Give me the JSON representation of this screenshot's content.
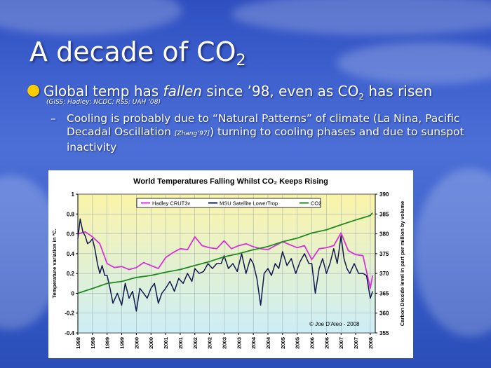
{
  "slide": {
    "title_main": "A decade of CO",
    "title_sub": "2",
    "bullet1_pre": "Global temp has ",
    "bullet1_em": "fallen",
    "bullet1_mid": " since ’98, even as CO",
    "bullet1_sub": "2",
    "bullet1_post": " has risen",
    "bullet1_source": "(GISS; Hadley; NCDC; RSS; UAH ‘08)",
    "bullet2_dash": "–",
    "bullet2_pre": "Cooling is probably due to “Natural Patterns” of climate (La Nina, Pacific Decadal Oscillation ",
    "bullet2_ref": "[Zhang’97]",
    "bullet2_post": ") turning to cooling phases and due to sunspot inactivity"
  },
  "chart_data": {
    "type": "line",
    "title": "World Temperatures Falling Whilst CO₂ Keeps Rising",
    "ylabel": "Temperature variation in ºC.",
    "y2label": "Carbon Dioxide level in part per million by volume",
    "ylim": [
      -0.4,
      1
    ],
    "y2lim": [
      355,
      390
    ],
    "yticks": [
      "1",
      "0.8",
      "0.6",
      "0.4",
      "0.2",
      "0",
      "-0.2",
      "-0.4"
    ],
    "y2ticks": [
      "390",
      "385",
      "380",
      "375",
      "370",
      "365",
      "360",
      "355"
    ],
    "xlim": [
      1998,
      2008.17
    ],
    "xtick_labels": [
      "1998",
      "1998",
      "1999",
      "1999",
      "2000",
      "2000",
      "2001",
      "2001",
      "2002",
      "2002",
      "2003",
      "2003",
      "2004",
      "2004",
      "2005",
      "2005",
      "2006",
      "2006",
      "2007",
      "2007",
      "2008"
    ],
    "grid": true,
    "legend_position": "top",
    "credit": "© Joe D'Aleo - 2008",
    "colors": {
      "hadley": "#d633d6",
      "msu": "#101850",
      "co2": "#1f8a1f",
      "plot_bg_top": "#fbf4a8",
      "plot_bg_bottom": "#cdeef7"
    },
    "series": [
      {
        "name": "Hadley CRUT3v",
        "x": [
          1998.0,
          1998.25,
          1998.5,
          1998.75,
          1999.0,
          1999.25,
          1999.5,
          1999.75,
          2000.0,
          2000.25,
          2000.5,
          2000.75,
          2001.0,
          2001.25,
          2001.5,
          2001.75,
          2002.0,
          2002.25,
          2002.5,
          2002.75,
          2003.0,
          2003.25,
          2003.5,
          2003.75,
          2004.0,
          2004.25,
          2004.5,
          2004.75,
          2005.0,
          2005.25,
          2005.5,
          2005.75,
          2006.0,
          2006.25,
          2006.5,
          2006.75,
          2007.0,
          2007.25,
          2007.5,
          2007.75,
          2008.0,
          2008.08
        ],
        "y": [
          0.6,
          0.62,
          0.57,
          0.5,
          0.3,
          0.26,
          0.27,
          0.24,
          0.26,
          0.31,
          0.28,
          0.25,
          0.36,
          0.41,
          0.45,
          0.44,
          0.57,
          0.48,
          0.46,
          0.45,
          0.53,
          0.45,
          0.48,
          0.5,
          0.47,
          0.45,
          0.44,
          0.48,
          0.52,
          0.49,
          0.46,
          0.48,
          0.34,
          0.45,
          0.46,
          0.48,
          0.61,
          0.43,
          0.39,
          0.38,
          0.05,
          0.18
        ]
      },
      {
        "name": "MSU Satellite LowerTrop",
        "x": [
          1998.0,
          1998.08,
          1998.17,
          1998.25,
          1998.33,
          1998.42,
          1998.5,
          1998.58,
          1998.67,
          1998.75,
          1998.83,
          1998.92,
          1999.0,
          1999.1,
          1999.2,
          1999.35,
          1999.5,
          1999.62,
          1999.75,
          1999.87,
          2000.0,
          2000.12,
          2000.25,
          2000.37,
          2000.5,
          2000.62,
          2000.75,
          2000.87,
          2001.0,
          2001.15,
          2001.3,
          2001.45,
          2001.6,
          2001.75,
          2001.9,
          2002.0,
          2002.15,
          2002.3,
          2002.45,
          2002.6,
          2002.75,
          2002.9,
          2003.0,
          2003.15,
          2003.3,
          2003.45,
          2003.6,
          2003.75,
          2003.9,
          2004.0,
          2004.12,
          2004.25,
          2004.37,
          2004.5,
          2004.62,
          2004.75,
          2004.87,
          2005.0,
          2005.15,
          2005.3,
          2005.45,
          2005.6,
          2005.75,
          2005.9,
          2006.0,
          2006.12,
          2006.25,
          2006.37,
          2006.5,
          2006.62,
          2006.75,
          2006.87,
          2007.0,
          2007.1,
          2007.2,
          2007.3,
          2007.45,
          2007.6,
          2007.75,
          2007.87,
          2008.0,
          2008.08
        ],
        "y": [
          0.55,
          0.75,
          0.62,
          0.58,
          0.5,
          0.52,
          0.55,
          0.45,
          0.3,
          0.2,
          0.28,
          0.18,
          0.18,
          0.05,
          -0.1,
          0.0,
          -0.12,
          0.1,
          -0.05,
          0.02,
          -0.18,
          0.05,
          0.0,
          -0.05,
          0.05,
          0.1,
          -0.1,
          0.0,
          0.05,
          0.12,
          0.02,
          0.15,
          0.1,
          0.2,
          0.12,
          0.25,
          0.2,
          0.22,
          0.3,
          0.25,
          0.3,
          0.3,
          0.38,
          0.25,
          0.3,
          0.22,
          0.4,
          0.2,
          0.35,
          0.3,
          0.15,
          -0.12,
          0.2,
          0.25,
          0.18,
          0.3,
          0.25,
          0.42,
          0.28,
          0.35,
          0.2,
          0.32,
          0.4,
          0.3,
          0.3,
          0.0,
          0.25,
          0.35,
          0.2,
          0.3,
          0.45,
          0.3,
          0.58,
          0.35,
          0.25,
          0.2,
          0.3,
          0.2,
          0.2,
          0.18,
          -0.05,
          0.02
        ]
      },
      {
        "name": "CO2",
        "x": [
          1998.0,
          1998.5,
          1999.0,
          1999.5,
          2000.0,
          2000.5,
          2001.0,
          2001.5,
          2002.0,
          2002.5,
          2003.0,
          2003.5,
          2004.0,
          2004.5,
          2005.0,
          2005.5,
          2006.0,
          2006.5,
          2007.0,
          2007.5,
          2008.0,
          2008.08
        ],
        "y": [
          365.0,
          366.2,
          367.5,
          368.0,
          369.0,
          369.5,
          370.3,
          371.0,
          372.0,
          373.0,
          374.2,
          375.0,
          376.0,
          376.8,
          378.0,
          378.9,
          380.2,
          381.0,
          382.3,
          383.5,
          384.6,
          385.3
        ]
      }
    ]
  }
}
